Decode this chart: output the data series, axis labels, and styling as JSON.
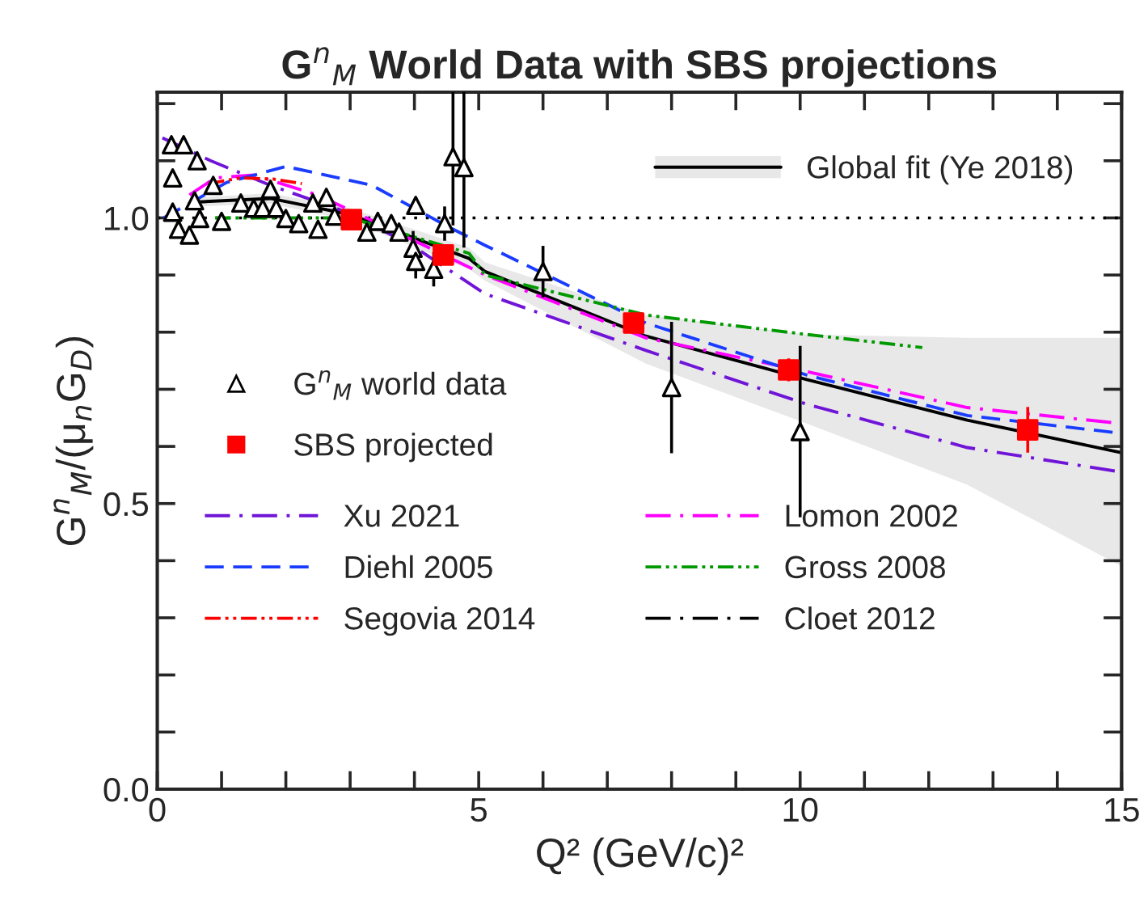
{
  "chart_data": {
    "type": "line",
    "title": "G$^{n}$$_{M}$ World Data with SBS projections",
    "xlabel": "Q² (GeV/c)²",
    "ylabel": "G$^{n}$$_{M}$/(μ$_{n}$G$_{D}$)",
    "xlim": [
      0,
      15
    ],
    "ylim": [
      0,
      1.22
    ],
    "xticks": [
      0,
      {
        "value": 1,
        "label": null
      },
      {
        "value": 2,
        "label": null
      },
      {
        "value": 3,
        "label": null
      },
      {
        "value": 4,
        "label": null
      },
      5,
      {
        "value": 6,
        "label": null
      },
      {
        "value": 7,
        "label": null
      },
      {
        "value": 8,
        "label": null
      },
      {
        "value": 9,
        "label": null
      },
      10,
      {
        "value": 11,
        "label": null
      },
      {
        "value": 12,
        "label": null
      },
      {
        "value": 13,
        "label": null
      },
      {
        "value": 14,
        "label": null
      },
      15
    ],
    "yticks": [
      {
        "value": 0,
        "label": "0.0"
      },
      {
        "value": 0.1,
        "label": null
      },
      {
        "value": 0.2,
        "label": null
      },
      {
        "value": 0.3,
        "label": null
      },
      {
        "value": 0.4,
        "label": null
      },
      0.5,
      {
        "value": 0.6,
        "label": null
      },
      {
        "value": 0.7,
        "label": null
      },
      {
        "value": 0.8,
        "label": null
      },
      {
        "value": 0.9,
        "label": null
      },
      {
        "value": 1.0,
        "label": "1.0"
      },
      {
        "value": 1.1,
        "label": null
      },
      {
        "value": 1.2,
        "label": null
      }
    ],
    "grid": false,
    "legend": "left",
    "ref_lines": [
      {
        "axis": "y",
        "value": 1.0,
        "color": "#000000",
        "line_style": "dotted"
      }
    ],
    "series": [
      {
        "name": "Global fit (Ye 2018)",
        "color": "#000000",
        "line_style": "solid",
        "x": [
          0.65,
          1.76,
          3.0,
          4.85,
          5.1,
          7.6,
          10.1,
          12.6,
          15
        ],
        "values": [
          1.028,
          1.034,
          1.006,
          0.929,
          0.906,
          0.793,
          0.717,
          0.646,
          0.589
        ],
        "lower": [
          1.02,
          1.025,
          0.995,
          0.91,
          0.89,
          0.745,
          0.64,
          0.533,
          0.39
        ],
        "upper": [
          1.036,
          1.043,
          1.017,
          0.948,
          0.922,
          0.83,
          0.796,
          0.79,
          0.79
        ]
      },
      {
        "name": "Xu 2021",
        "color": "#7015d8",
        "line_style": "dashdot",
        "x": [
          0.08,
          0.83,
          1.76,
          3.0,
          4.0,
          5.1,
          7.6,
          10.1,
          12.6,
          15
        ],
        "values": [
          1.14,
          1.1,
          1.057,
          1.008,
          0.949,
          0.867,
          0.768,
          0.674,
          0.598,
          0.555
        ]
      },
      {
        "name": "Lomon 2002",
        "color": "#ff00ff",
        "line_style": "dashdot",
        "x": [
          0.5,
          0.9,
          1.5,
          2.5,
          4.0,
          5.1,
          7.6,
          10.1,
          12.6,
          15
        ],
        "values": [
          1.04,
          1.07,
          1.075,
          1.04,
          0.96,
          0.9,
          0.79,
          0.731,
          0.668,
          0.64
        ]
      },
      {
        "name": "Diehl 2005",
        "color": "#1a3cff",
        "line_style": "dashed",
        "x": [
          0.1,
          1.08,
          2.0,
          3.34,
          4.5,
          5.1,
          7.6,
          10.1,
          12.6,
          15
        ],
        "values": [
          1.0,
          1.062,
          1.09,
          1.057,
          0.986,
          0.952,
          0.816,
          0.725,
          0.654,
          0.623
        ]
      },
      {
        "name": "Gross 2008",
        "color": "#009900",
        "line_style": "dashdotdot",
        "x": [
          0.9,
          3.0,
          4.85,
          5.1,
          7.6,
          10.1,
          11.9
        ],
        "values": [
          1.0,
          1.0,
          0.938,
          0.9,
          0.83,
          0.796,
          0.773
        ]
      },
      {
        "name": "Segovia 2014",
        "color": "#ff0000",
        "line_style": "dashdotdot",
        "x": [
          0.8,
          1.3,
          1.8,
          2.25
        ],
        "values": [
          1.06,
          1.07,
          1.068,
          1.06
        ]
      },
      {
        "name": "Cloet 2012",
        "color": "#000000",
        "line_style": "dashdot"
      },
      {
        "name": "G$^{n}$$_{M}$ world data",
        "type": "scatter",
        "color": "#000000",
        "marker": "triangle",
        "x": [
          0.22,
          0.41,
          0.62,
          0.24,
          0.87,
          0.24,
          0.33,
          0.5,
          0.66,
          0.58,
          1.0,
          1.3,
          1.5,
          1.76,
          1.64,
          1.85,
          2.0,
          2.2,
          2.5,
          2.42,
          2.63,
          2.76,
          3.26,
          3.43,
          3.64,
          3.76,
          4.02,
          3.98,
          4.02,
          4.3,
          4.47,
          4.6,
          4.77,
          6.0,
          8.0,
          10.0
        ],
        "values": [
          1.128,
          1.128,
          1.1,
          1.07,
          1.057,
          1.01,
          0.98,
          0.97,
          0.999,
          1.03,
          0.994,
          1.026,
          1.017,
          1.05,
          1.017,
          1.017,
          0.999,
          0.99,
          0.98,
          1.026,
          1.036,
          1.003,
          0.975,
          0.994,
          0.99,
          0.975,
          1.022,
          0.947,
          0.924,
          0.91,
          0.99,
          1.107,
          1.088,
          0.906,
          0.703,
          0.626
        ],
        "errors": [
          null,
          null,
          null,
          null,
          null,
          null,
          null,
          null,
          null,
          null,
          null,
          null,
          null,
          null,
          null,
          null,
          null,
          null,
          null,
          null,
          null,
          null,
          null,
          null,
          null,
          null,
          null,
          0.03,
          0.03,
          0.03,
          0.03,
          0.12,
          0.14,
          0.045,
          0.115,
          0.15
        ]
      },
      {
        "name": "SBS projected",
        "type": "scatter",
        "color": "#ff0000",
        "marker": "square",
        "x": [
          3.02,
          4.45,
          7.41,
          9.82,
          13.54
        ],
        "values": [
          0.997,
          0.935,
          0.816,
          0.734,
          0.629
        ],
        "errors": [
          0.01,
          0.01,
          0.015,
          0.02,
          0.04
        ]
      }
    ]
  }
}
